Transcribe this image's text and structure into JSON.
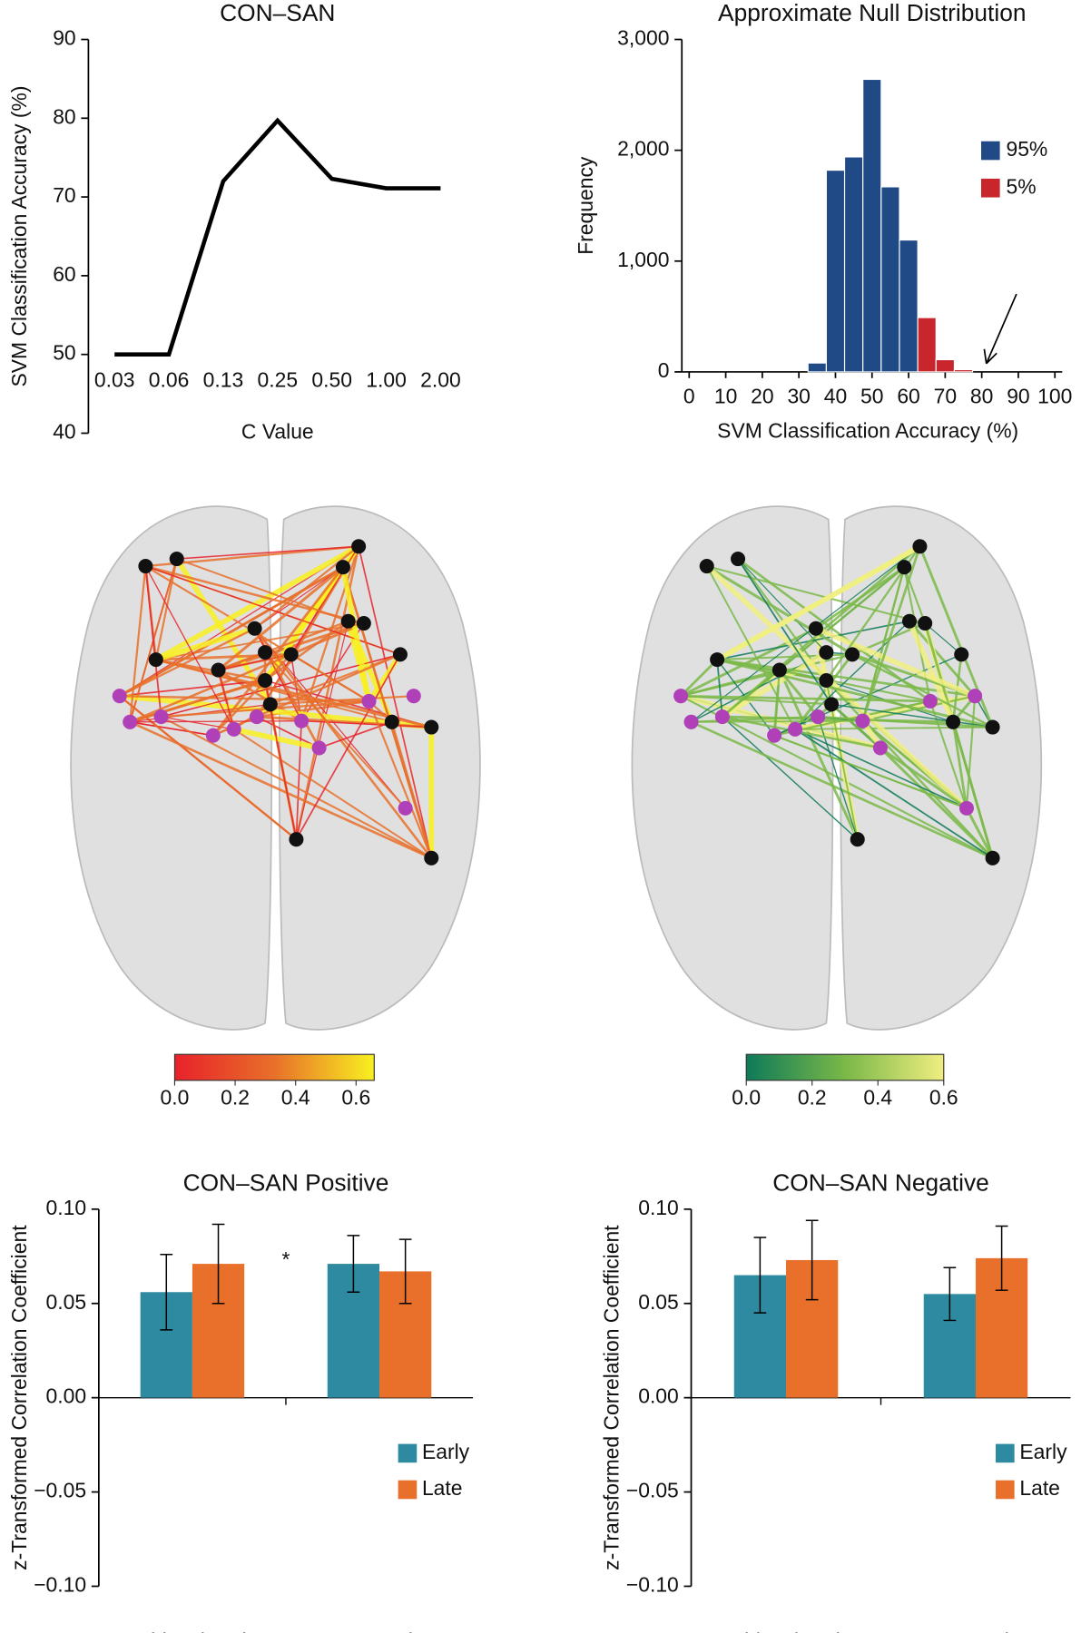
{
  "chart_data": [
    {
      "type": "line",
      "title": "CON–SAN",
      "xlabel": "C Value",
      "ylabel": "SVM Classification Accuracy (%)",
      "categories": [
        "0.03",
        "0.06",
        "0.13",
        "0.25",
        "0.50",
        "1.00",
        "2.00"
      ],
      "values": [
        50,
        50,
        72,
        79.7,
        72.3,
        71.1,
        71.1
      ],
      "color": "#000000",
      "ylim": [
        40,
        90
      ],
      "yticks": [
        40,
        50,
        60,
        70,
        80,
        90
      ]
    },
    {
      "type": "histogram",
      "title": "Approximate Null Distribution",
      "xlabel": "SVM Classification Accuracy (%)",
      "ylabel": "Frequency",
      "series": [
        {
          "name": "95%",
          "color": "#1f4a86",
          "bins": [
            32.5,
            37.5,
            42.5,
            47.5,
            52.5,
            57.5,
            62.5
          ],
          "counts": [
            80,
            1820,
            1940,
            2640,
            1670,
            1190
          ]
        },
        {
          "name": "5%",
          "color": "#c8252c",
          "bins": [
            62.5,
            67.5,
            72.5,
            77.5
          ],
          "counts": [
            490,
            110,
            20
          ]
        }
      ],
      "xlim": [
        -2,
        102
      ],
      "xticks": [
        0,
        10,
        20,
        30,
        40,
        50,
        60,
        70,
        80,
        90,
        100
      ],
      "ylim": [
        0,
        3000
      ],
      "yticks": [
        0,
        {
          "value": 1000,
          "label": "1,000"
        },
        {
          "value": 2000,
          "label": "2,000"
        },
        {
          "value": 3000,
          "label": "3,000"
        }
      ],
      "legend": "right"
    },
    {
      "type": "bar",
      "title": "CON–SAN Positive",
      "ylabel": "z-Transformed Correlation Coefficient",
      "annotation": "*",
      "categories": [
        "Schizophrenia",
        "Control"
      ],
      "series": [
        {
          "name": "Early",
          "color": "#2e8aa0",
          "values": [
            0.056,
            0.071
          ],
          "errors": [
            0.02,
            0.015
          ]
        },
        {
          "name": "Late",
          "color": "#e8702a",
          "values": [
            0.071,
            0.067
          ],
          "errors": [
            0.021,
            0.017
          ]
        }
      ],
      "ylim": [
        -0.1,
        0.1
      ],
      "yticks": [
        {
          "value": -0.1,
          "label": "−0.10"
        },
        {
          "value": -0.05,
          "label": "−0.05"
        },
        {
          "value": 0,
          "label": "0.00"
        },
        {
          "value": 0.05,
          "label": "0.05"
        },
        {
          "value": 0.1,
          "label": "0.10"
        }
      ],
      "legend": "lower right"
    },
    {
      "type": "bar",
      "title": "CON–SAN Negative",
      "ylabel": "z-Transformed Correlation Coefficient",
      "categories": [
        "Schizophrenia",
        "Control"
      ],
      "series": [
        {
          "name": "Early",
          "color": "#2e8aa0",
          "values": [
            0.065,
            0.055
          ],
          "errors": [
            0.02,
            0.014
          ]
        },
        {
          "name": "Late",
          "color": "#e8702a",
          "values": [
            0.073,
            0.074
          ],
          "errors": [
            0.021,
            0.017
          ]
        }
      ],
      "ylim": [
        -0.1,
        0.1
      ],
      "yticks": [
        {
          "value": -0.1,
          "label": "−0.10"
        },
        {
          "value": -0.05,
          "label": "−0.05"
        },
        {
          "value": 0,
          "label": "0.00"
        },
        {
          "value": 0.05,
          "label": "0.05"
        },
        {
          "value": 0.1,
          "label": "0.10"
        }
      ],
      "legend": "lower right"
    }
  ],
  "colorbars": [
    {
      "colors": [
        "#e8222a",
        "#e8702a",
        "#f8f020"
      ],
      "lim": [
        0,
        0.66
      ],
      "ticks": [
        {
          "value": 0,
          "label": "0.0"
        },
        {
          "value": 0.2,
          "label": "0.2"
        },
        {
          "value": 0.4,
          "label": "0.4"
        },
        {
          "value": 0.6,
          "label": "0.6"
        }
      ]
    },
    {
      "colors": [
        "#0e7a58",
        "#7ab848",
        "#f0ee80"
      ],
      "lim": [
        0,
        0.6
      ],
      "ticks": [
        {
          "value": 0,
          "label": "0.0"
        },
        {
          "value": 0.2,
          "label": "0.2"
        },
        {
          "value": 0.4,
          "label": "0.4"
        },
        {
          "value": 0.6,
          "label": "0.6"
        }
      ]
    }
  ]
}
